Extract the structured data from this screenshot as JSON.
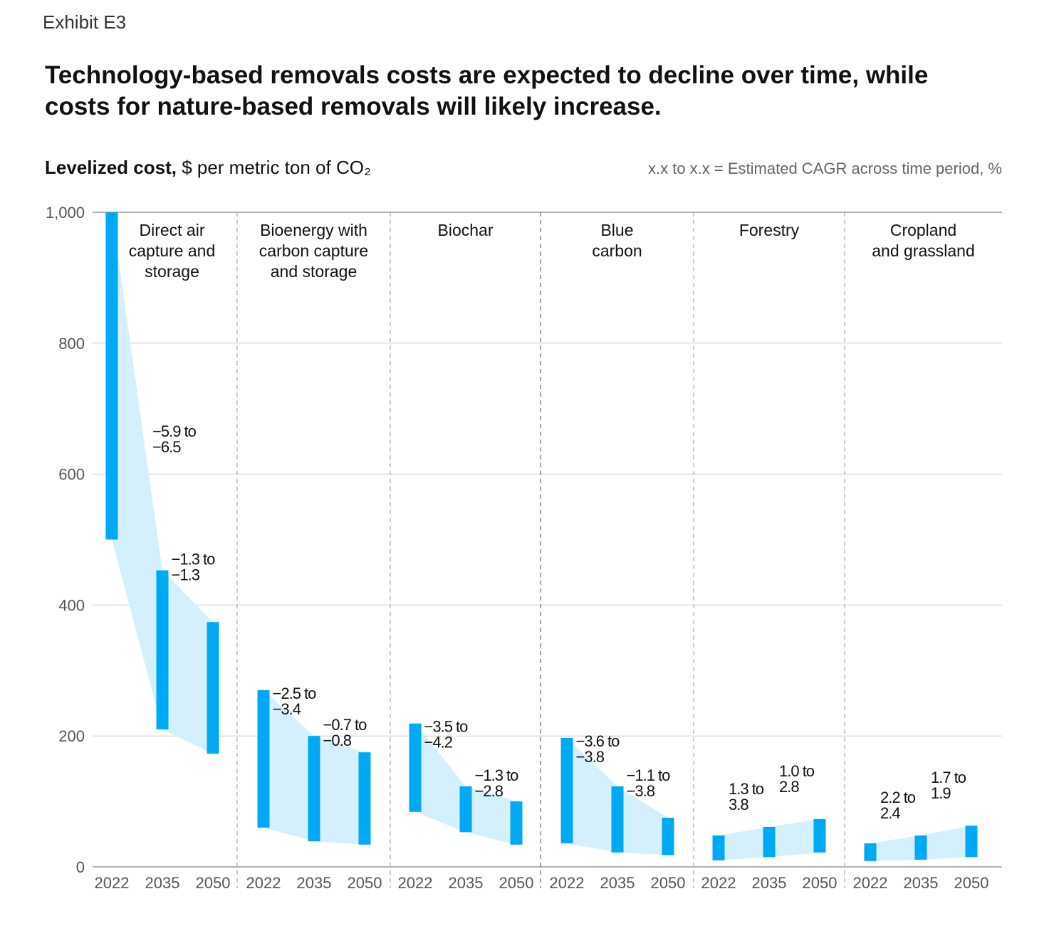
{
  "exhibit": "Exhibit E3",
  "title": "Technology-based removals costs are expected to decline over time, while costs for nature-based removals will likely increase.",
  "unit_bold": "Levelized cost,",
  "unit_rest": " $ per metric ton of CO₂",
  "legend_note": "x.x to x.x = Estimated CAGR across time period, %",
  "colors": {
    "bar": "#00a9f4",
    "band": "#d3f0fc",
    "grid": "#cccccc"
  },
  "chart_data": {
    "type": "floating-bar range with bands",
    "ylim": [
      0,
      1000
    ],
    "yticks": [
      "0",
      "200",
      "400",
      "600",
      "800",
      "1,000"
    ],
    "ytick_values": [
      0,
      200,
      400,
      600,
      800,
      1000
    ],
    "grid": true,
    "years": [
      "2022",
      "2035",
      "2050"
    ],
    "groups": [
      {
        "name": "Direct air capture and storage",
        "lines": [
          "Direct air",
          "capture and",
          "storage"
        ],
        "ranges": [
          [
            500,
            1000
          ],
          [
            210,
            453
          ],
          [
            173,
            374
          ]
        ],
        "cagr": [
          [
            "−5.9 to",
            "−6.5"
          ],
          [
            "−1.3 to",
            "−1.3"
          ]
        ]
      },
      {
        "name": "Bioenergy with carbon capture and storage",
        "lines": [
          "Bioenergy with",
          "carbon capture",
          "and storage"
        ],
        "ranges": [
          [
            60,
            270
          ],
          [
            39,
            200
          ],
          [
            34,
            175
          ]
        ],
        "cagr": [
          [
            "−2.5 to",
            "−3.4"
          ],
          [
            "−0.7 to",
            "−0.8"
          ]
        ]
      },
      {
        "name": "Biochar",
        "lines": [
          "Biochar"
        ],
        "ranges": [
          [
            84,
            219
          ],
          [
            53,
            123
          ],
          [
            34,
            100
          ]
        ],
        "cagr": [
          [
            "−3.5 to",
            "−4.2"
          ],
          [
            "−1.3 to",
            "−2.8"
          ]
        ]
      },
      {
        "name": "Blue carbon",
        "lines": [
          "Blue",
          "carbon"
        ],
        "ranges": [
          [
            36,
            197
          ],
          [
            22,
            123
          ],
          [
            18,
            75
          ]
        ],
        "cagr": [
          [
            "−3.6 to",
            "−3.8"
          ],
          [
            "−1.1 to",
            "−3.8"
          ]
        ]
      },
      {
        "name": "Forestry",
        "lines": [
          "Forestry"
        ],
        "ranges": [
          [
            10,
            48
          ],
          [
            15,
            61
          ],
          [
            22,
            73
          ]
        ],
        "cagr": [
          [
            "1.3 to",
            "3.8"
          ],
          [
            "1.0 to",
            "2.8"
          ]
        ]
      },
      {
        "name": "Cropland and grassland",
        "lines": [
          "Cropland",
          "and grassland"
        ],
        "ranges": [
          [
            9,
            36
          ],
          [
            11,
            48
          ],
          [
            15,
            63
          ]
        ],
        "cagr": [
          [
            "2.2 to",
            "2.4"
          ],
          [
            "1.7 to",
            "1.9"
          ]
        ]
      }
    ]
  }
}
